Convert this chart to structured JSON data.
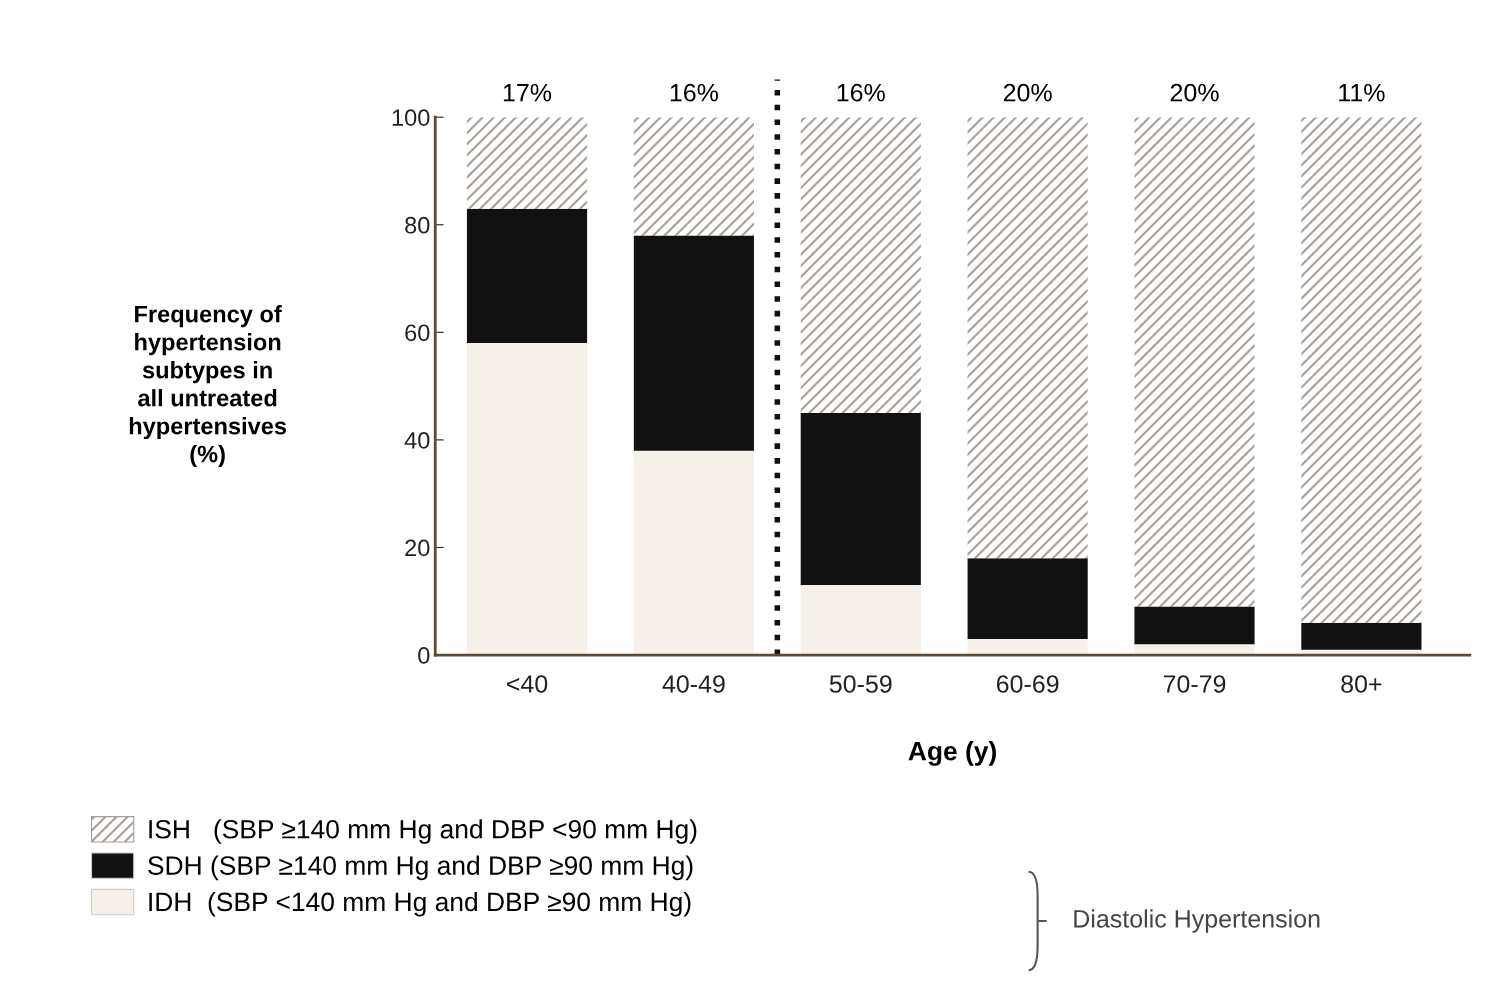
{
  "chart_data": {
    "type": "bar",
    "stacked": true,
    "categories": [
      "<40",
      "40-49",
      "50-59",
      "60-69",
      "70-79",
      "80+"
    ],
    "xlabel": "Age (y)",
    "ylabel": "Frequency of\nhypertension\nsubtypes in\nall untreated\nhypertensives\n(%)",
    "series": [
      {
        "name": "IDH  (SBP <140 mm Hg and DBP ≥90 mm Hg)",
        "color": "#f5f0ea",
        "values": [
          58,
          38,
          13,
          3,
          2,
          1
        ]
      },
      {
        "name": "SDH (SBP ≥140 mm Hg and DBP ≥90 mm Hg)",
        "color": "#111111",
        "values": [
          25,
          40,
          32,
          15,
          7,
          5
        ]
      },
      {
        "name": "ISH   (SBP ≥140 mm Hg and DBP <90 mm Hg)",
        "color": "#a8a098",
        "values": [
          17,
          22,
          55,
          82,
          91,
          94
        ]
      }
    ],
    "ylim": [
      0,
      100
    ],
    "yticks": [
      0,
      20,
      40,
      60,
      80,
      100
    ],
    "annotations": [
      "17%",
      "16%",
      "16%",
      "20%",
      "20%",
      "11%",
      "Diastolic Hypertension"
    ],
    "legend": "bottom",
    "grid": false
  }
}
